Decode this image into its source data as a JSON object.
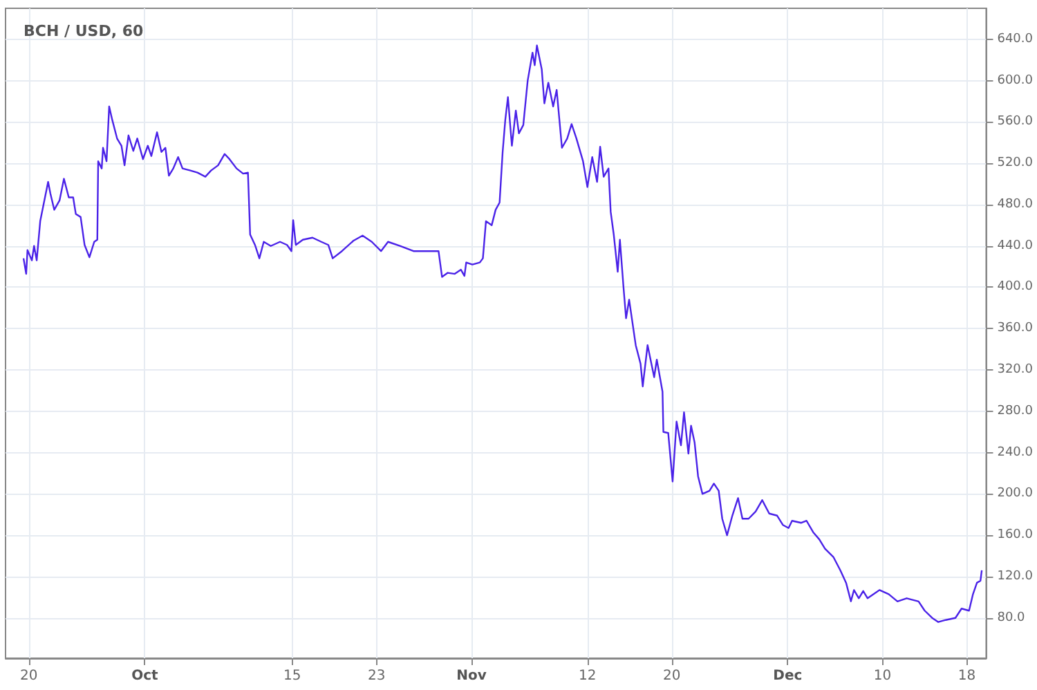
{
  "chart_data": {
    "type": "line",
    "title": "BCH / USD, 60",
    "color": "#4a22e8",
    "grid": true,
    "marker": "none",
    "line_style": "solid",
    "xlim": [
      "--09-17T19:00",
      "--12-19T20:00"
    ],
    "xticks": [
      {
        "value": "--09-20",
        "label": "20"
      },
      {
        "value": "--10-01",
        "label": "Oct"
      },
      {
        "value": "--10-15",
        "label": "15"
      },
      {
        "value": "--10-23",
        "label": "23"
      },
      {
        "value": "--11-01",
        "label": "Nov"
      },
      {
        "value": "--11-12",
        "label": "12"
      },
      {
        "value": "--11-20",
        "label": "20"
      },
      {
        "value": "--12-01",
        "label": "Dec"
      },
      {
        "value": "--12-10",
        "label": "10"
      },
      {
        "value": "--12-18",
        "label": "18"
      }
    ],
    "ylim": [
      41,
      670
    ],
    "yticks": [
      {
        "value": 80,
        "label": "80.0"
      },
      {
        "value": 120,
        "label": "120.0"
      },
      {
        "value": 160,
        "label": "160.0"
      },
      {
        "value": 200,
        "label": "200.0"
      },
      {
        "value": 240,
        "label": "240.0"
      },
      {
        "value": 280,
        "label": "280.0"
      },
      {
        "value": 320,
        "label": "320.0"
      },
      {
        "value": 360,
        "label": "360.0"
      },
      {
        "value": 400,
        "label": "400.0"
      },
      {
        "value": 440,
        "label": "440.0"
      },
      {
        "value": 480,
        "label": "480.0"
      },
      {
        "value": 520,
        "label": "520.0"
      },
      {
        "value": 560,
        "label": "560.0"
      },
      {
        "value": 600,
        "label": "600.0"
      },
      {
        "value": 640,
        "label": "640.0"
      }
    ],
    "x": [
      "--09-19T12:00",
      "--09-19T18:00",
      "--09-19T21:00",
      "--09-20T07:00",
      "--09-20T12:00",
      "--09-20T18:00",
      "--09-21T02:00",
      "--09-21T10:00",
      "--09-21T20:00",
      "--09-22T01:00",
      "--09-22T10:00",
      "--09-22T22:00",
      "--09-23T08:00",
      "--09-23T19:00",
      "--09-24T05:00",
      "--09-24T11:00",
      "--09-24T22:00",
      "--09-25T07:00",
      "--09-25T18:00",
      "--09-26T05:00",
      "--09-26T12:00",
      "--09-26T14:00",
      "--09-26T22:00",
      "--09-27T01:00",
      "--09-27T09:00",
      "--09-27T15:00",
      "--09-27T22:00",
      "--09-28T09:00",
      "--09-28T19:00",
      "--09-29T02:00",
      "--09-29T11:00",
      "--09-29T22:00",
      "--09-30T07:00",
      "--09-30T20:00",
      "--10-01T07:00",
      "--10-01T15:00",
      "--10-02T04:00",
      "--10-02T14:00",
      "--10-02T23:00",
      "--10-03T07:00",
      "--10-03T17:00",
      "--10-04T04:00",
      "--10-04T14:00",
      "--10-05T08:00",
      "--10-06T00:00",
      "--10-06T18:00",
      "--10-07T07:00",
      "--10-07T23:00",
      "--10-08T14:00",
      "--10-09T01:00",
      "--10-09T17:00",
      "--10-10T08:00",
      "--10-10T19:00",
      "--10-11T00:00",
      "--10-11T11:00",
      "--10-11T21:00",
      "--10-12T07:00",
      "--10-12T23:00",
      "--10-13T20:00",
      "--10-14T12:00",
      "--10-14T22:00",
      "--10-15T02:00",
      "--10-15T08:00",
      "--10-16T00:00",
      "--10-16T22:00",
      "--10-17T18:00",
      "--10-18T10:00",
      "--10-18T20:00",
      "--10-19T17:00",
      "--10-20T19:00",
      "--10-21T16:00",
      "--10-22T13:00",
      "--10-23T10:00",
      "--10-24T02:00",
      "--10-25T05:00",
      "--10-26T12:00",
      "--10-27T19:00",
      "--10-28T21:00",
      "--10-29T05:00",
      "--10-29T18:00",
      "--10-30T10:00",
      "--10-31T00:00",
      "--10-31T08:00",
      "--10-31T12:00",
      "--11-01T02:00",
      "--11-01T19:00",
      "--11-02T02:00",
      "--11-02T09:00",
      "--11-02T22:00",
      "--11-03T07:00",
      "--11-03T16:00",
      "--11-03T23:00",
      "--11-04T05:00",
      "--11-04T11:00",
      "--11-04T20:00",
      "--11-05T05:00",
      "--11-05T12:00",
      "--11-05T22:00",
      "--11-06T08:00",
      "--11-06T19:00",
      "--11-07T00:00",
      "--11-07T05:00",
      "--11-07T16:00",
      "--11-07T22:00",
      "--11-08T07:00",
      "--11-08T18:00",
      "--11-09T02:00",
      "--11-09T14:00",
      "--11-10T02:00",
      "--11-10T12:00",
      "--11-10T23:00",
      "--11-11T14:00",
      "--11-12T00:00",
      "--11-12T11:00",
      "--11-12T22:00",
      "--11-13T05:00",
      "--11-13T13:00",
      "--11-14T00:00",
      "--11-14T05:00",
      "--11-14T12:00",
      "--11-14T21:00",
      "--11-15T02:00",
      "--11-15T10:00",
      "--11-15T16:00",
      "--11-15T23:00",
      "--11-16T14:00",
      "--11-17T01:00",
      "--11-17T06:00",
      "--11-17T17:00",
      "--11-18T08:00",
      "--11-18T14:00",
      "--11-19T03:00",
      "--11-19T05:00",
      "--11-19T16:00",
      "--11-20T02:00",
      "--11-20T11:00",
      "--11-20T21:00",
      "--11-21T04:00",
      "--11-21T14:00",
      "--11-21T20:00",
      "--11-22T04:00",
      "--11-22T12:00",
      "--11-22T22:00",
      "--11-23T14:00",
      "--11-24T00:00",
      "--11-24T11:00",
      "--11-24T19:00",
      "--11-25T06:00",
      "--11-25T18:00",
      "--11-26T07:00",
      "--11-26T17:00",
      "--11-27T07:00",
      "--11-27T23:00",
      "--11-28T14:00",
      "--11-29T06:00",
      "--11-30T00:00",
      "--11-30T13:00",
      "--12-01T02:00",
      "--12-01T10:00",
      "--12-02T07:00",
      "--12-02T19:00",
      "--12-03T10:00",
      "--12-04T00:00",
      "--12-04T13:00",
      "--12-05T08:00",
      "--12-06T00:00",
      "--12-06T13:00",
      "--12-07T00:00",
      "--12-07T07:00",
      "--12-07T18:00",
      "--12-08T04:00",
      "--12-08T14:00",
      "--12-09T17:00",
      "--12-10T14:00",
      "--12-11T10:00",
      "--12-12T07:00",
      "--12-13T10:00",
      "--12-14T00:00",
      "--12-14T17:00",
      "--12-15T07:00",
      "--12-16T00:00",
      "--12-16T22:00",
      "--12-17T12:00",
      "--12-18T05:00",
      "--12-18T14:00",
      "--12-18T23:00",
      "--12-19T07:00",
      "--12-19T10:00"
    ],
    "values": [
      428,
      413,
      436,
      426,
      440,
      426,
      464,
      481,
      502,
      491,
      475,
      484,
      505,
      487,
      487,
      471,
      468,
      441,
      429,
      444,
      446,
      522,
      515,
      535,
      522,
      575,
      562,
      544,
      537,
      518,
      547,
      532,
      544,
      524,
      537,
      527,
      550,
      531,
      535,
      508,
      515,
      526,
      515,
      513,
      511,
      507,
      513,
      518,
      529,
      524,
      515,
      510,
      511,
      451,
      441,
      428,
      444,
      440,
      444,
      441,
      435,
      465,
      441,
      446,
      448,
      444,
      441,
      428,
      435,
      445,
      450,
      444,
      435,
      444,
      440,
      435,
      435,
      435,
      410,
      414,
      413,
      417,
      411,
      424,
      422,
      424,
      428,
      464,
      460,
      475,
      482,
      531,
      562,
      584,
      537,
      571,
      549,
      557,
      600,
      627,
      615,
      634,
      611,
      578,
      598,
      575,
      591,
      535,
      544,
      558,
      544,
      522,
      497,
      526,
      502,
      536,
      507,
      515,
      473,
      451,
      415,
      446,
      401,
      370,
      388,
      344,
      326,
      304,
      344,
      313,
      330,
      299,
      260,
      259,
      212,
      270,
      247,
      279,
      239,
      266,
      250,
      217,
      200,
      203,
      210,
      203,
      176,
      160,
      179,
      196,
      176,
      176,
      183,
      194,
      181,
      179,
      170,
      167,
      174,
      172,
      174,
      163,
      156,
      147,
      139,
      126,
      114,
      96,
      107,
      99,
      106,
      99,
      107,
      103,
      96,
      99,
      96,
      87,
      80,
      76,
      78,
      80,
      89,
      87,
      103,
      114,
      116,
      126
    ]
  }
}
